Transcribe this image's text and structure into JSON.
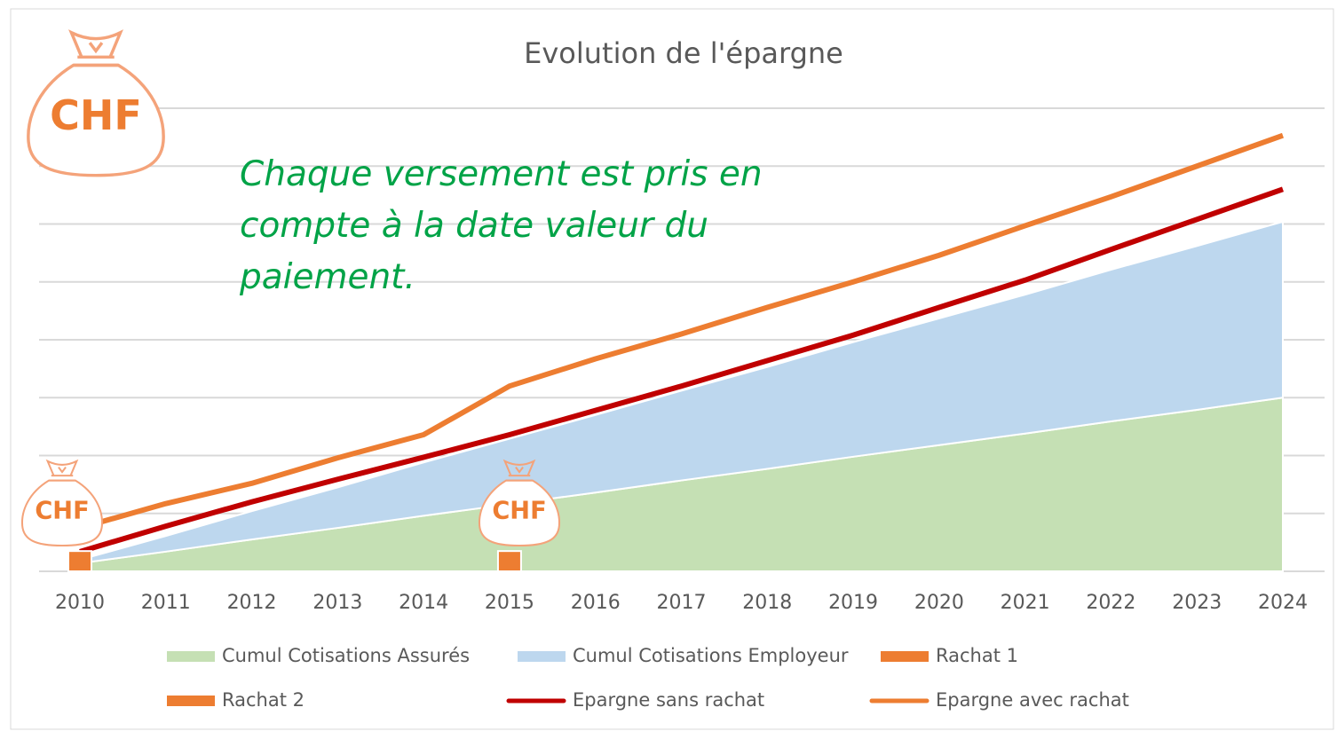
{
  "chart_data": {
    "type": "area",
    "title": "Evolution de l'épargne",
    "annotation": "Chaque versement est pris en compte à la date valeur du paiement.",
    "bag_label": "CHF",
    "categories": [
      "2010",
      "2011",
      "2012",
      "2013",
      "2014",
      "2015",
      "2016",
      "2017",
      "2018",
      "2019",
      "2020",
      "2021",
      "2022",
      "2023",
      "2024"
    ],
    "ylim": [
      0,
      8
    ],
    "yticks": [
      0,
      1,
      2,
      3,
      4,
      5,
      6,
      7,
      8
    ],
    "grid": true,
    "legend": "bottom",
    "series": [
      {
        "name": "Cumul Cotisations Assurés",
        "kind": "area",
        "color": "#c5e0b4",
        "values": [
          0.14,
          0.34,
          0.55,
          0.75,
          0.96,
          1.16,
          1.36,
          1.57,
          1.77,
          1.98,
          2.18,
          2.38,
          2.59,
          2.79,
          3.0
        ]
      },
      {
        "name": "Cumul Cotisations Employeur",
        "kind": "area",
        "color": "#bdd7ee",
        "values": [
          0.06,
          0.27,
          0.49,
          0.7,
          0.92,
          1.13,
          1.34,
          1.55,
          1.76,
          1.98,
          2.19,
          2.4,
          2.62,
          2.83,
          3.04
        ]
      },
      {
        "name": "Rachat 1",
        "kind": "bar",
        "color": "#ed7d31",
        "values": [
          0.35,
          null,
          null,
          null,
          null,
          null,
          null,
          null,
          null,
          null,
          null,
          null,
          null,
          null,
          null
        ]
      },
      {
        "name": "Rachat 2",
        "kind": "bar",
        "color": "#ed7d31",
        "values": [
          null,
          null,
          null,
          null,
          null,
          0.35,
          null,
          null,
          null,
          null,
          null,
          null,
          null,
          null,
          null
        ]
      },
      {
        "name": "Epargne sans rachat",
        "kind": "line",
        "color": "#c00000",
        "values": [
          0.34,
          0.78,
          1.2,
          1.59,
          1.97,
          2.36,
          2.78,
          3.2,
          3.64,
          4.08,
          4.56,
          5.03,
          5.56,
          6.08,
          6.6
        ]
      },
      {
        "name": "Epargne avec rachat",
        "kind": "line",
        "color": "#ed7d31",
        "values": [
          0.75,
          1.17,
          1.52,
          1.96,
          2.36,
          3.2,
          3.67,
          4.1,
          4.56,
          5.0,
          5.46,
          5.97,
          6.47,
          7.0,
          7.53
        ]
      }
    ]
  }
}
